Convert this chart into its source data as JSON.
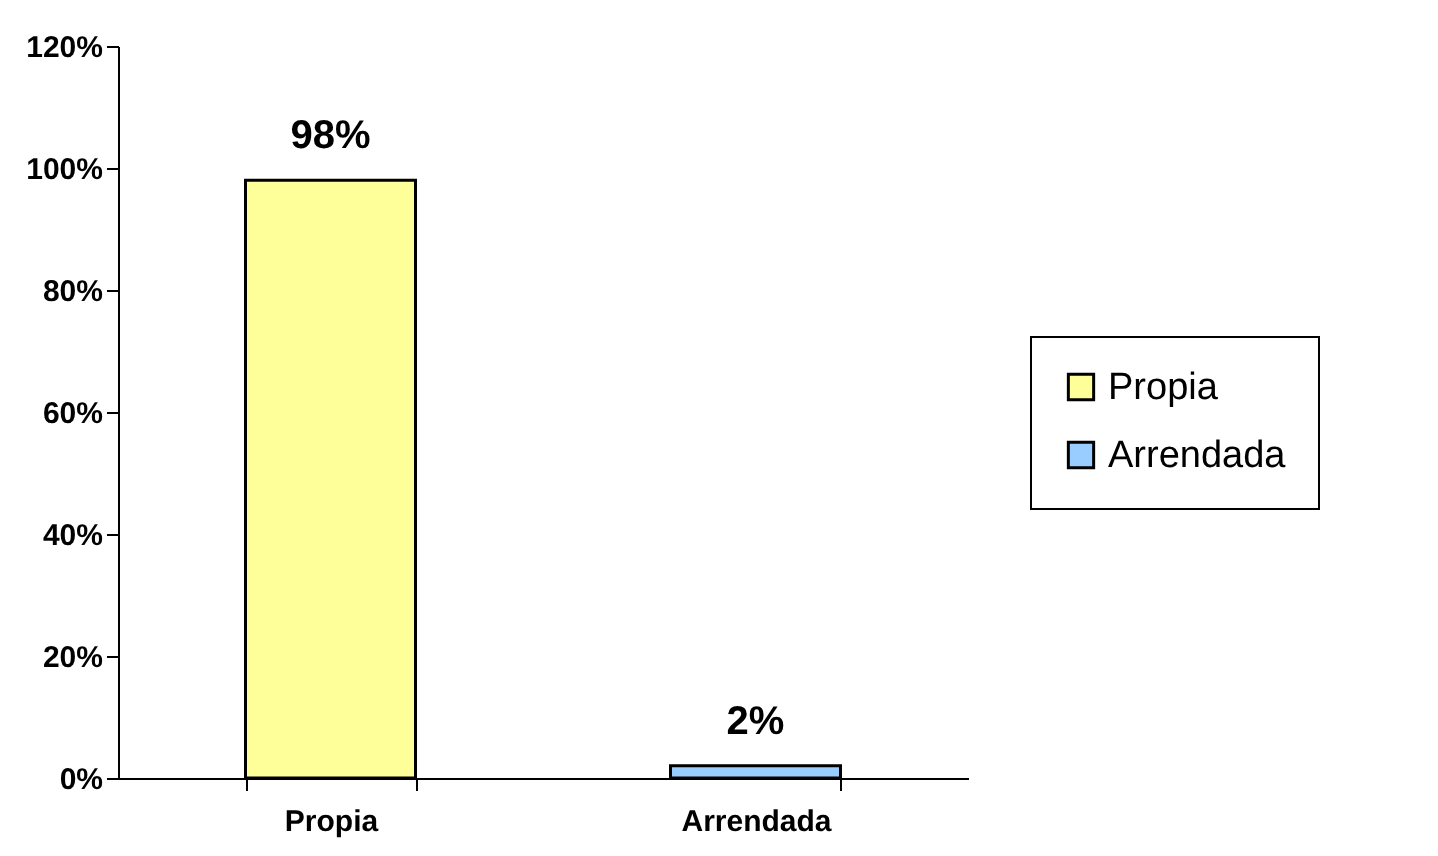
{
  "chart_data": {
    "type": "bar",
    "categories": [
      "Propia",
      "Arrendada"
    ],
    "series": [
      {
        "name": "Propia",
        "color": "#ffff99",
        "values": [
          98,
          null
        ],
        "value_labels": [
          "98%",
          null
        ]
      },
      {
        "name": "Arrendada",
        "color": "#99ccff",
        "values": [
          null,
          2
        ],
        "value_labels": [
          null,
          "2%"
        ]
      }
    ],
    "ylim": [
      0,
      120
    ],
    "yticks": [
      {
        "value": 0,
        "label": "0%"
      },
      {
        "value": 20,
        "label": "20%"
      },
      {
        "value": 40,
        "label": "40%"
      },
      {
        "value": 60,
        "label": "60%"
      },
      {
        "value": 80,
        "label": "80%"
      },
      {
        "value": 100,
        "label": "100%"
      },
      {
        "value": 120,
        "label": "120%"
      }
    ],
    "grid": false,
    "legend": "right"
  }
}
